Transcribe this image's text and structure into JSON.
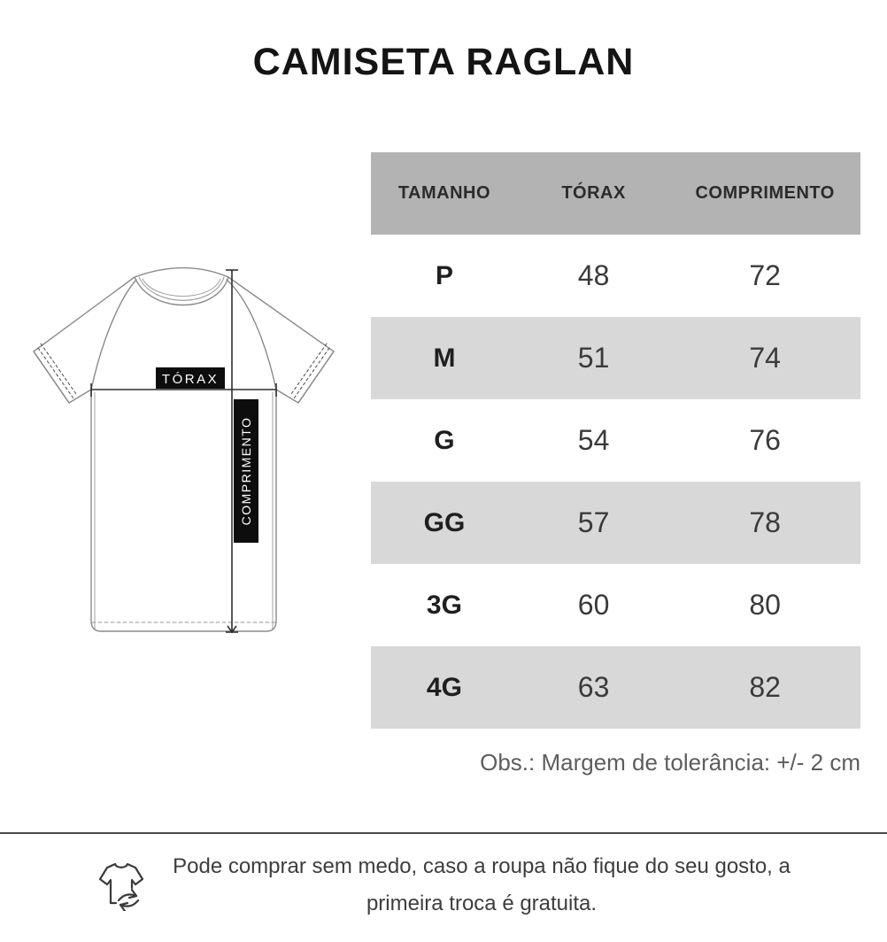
{
  "title": "CAMISETA RAGLAN",
  "diagram": {
    "torax_label": "TÓRAX",
    "comprimento_label": "COMPRIMENTO",
    "icons": [
      "tshirt-outline-drawing",
      "chest-measure-line",
      "length-measure-line"
    ]
  },
  "table": {
    "headers": [
      "TAMANHO",
      "TÓRAX",
      "COMPRIMENTO"
    ],
    "rows": [
      {
        "size": "P",
        "torax": "48",
        "comprimento": "72"
      },
      {
        "size": "M",
        "torax": "51",
        "comprimento": "74"
      },
      {
        "size": "G",
        "torax": "54",
        "comprimento": "76"
      },
      {
        "size": "GG",
        "torax": "57",
        "comprimento": "78"
      },
      {
        "size": "3G",
        "torax": "60",
        "comprimento": "80"
      },
      {
        "size": "4G",
        "torax": "63",
        "comprimento": "82"
      }
    ],
    "note": "Obs.: Margem de tolerância: +/- 2 cm"
  },
  "footer": {
    "icon": "tshirt-exchange-icon",
    "line1": "Pode comprar sem medo, caso a roupa não fique do seu gosto, a",
    "line2": "primeira troca é gratuita."
  },
  "colors": {
    "header_bg": "#b3b3b3",
    "alt_row_bg": "#d8d8d8",
    "label_box_bg": "#0d0d0d",
    "title_text": "#141414",
    "note_text": "#5d5d5d",
    "divider": "#4a4a4a",
    "drawing_stroke": "#8a8a8a",
    "measure_stroke": "#2f2f2f"
  },
  "chart_data": {
    "type": "table",
    "title": "CAMISETA RAGLAN",
    "columns": [
      "TAMANHO",
      "TÓRAX",
      "COMPRIMENTO"
    ],
    "rows": [
      [
        "P",
        48,
        72
      ],
      [
        "M",
        51,
        74
      ],
      [
        "G",
        54,
        76
      ],
      [
        "GG",
        57,
        78
      ],
      [
        "3G",
        60,
        80
      ],
      [
        "4G",
        63,
        82
      ]
    ],
    "note": "Obs.: Margem de tolerância: +/- 2 cm"
  }
}
